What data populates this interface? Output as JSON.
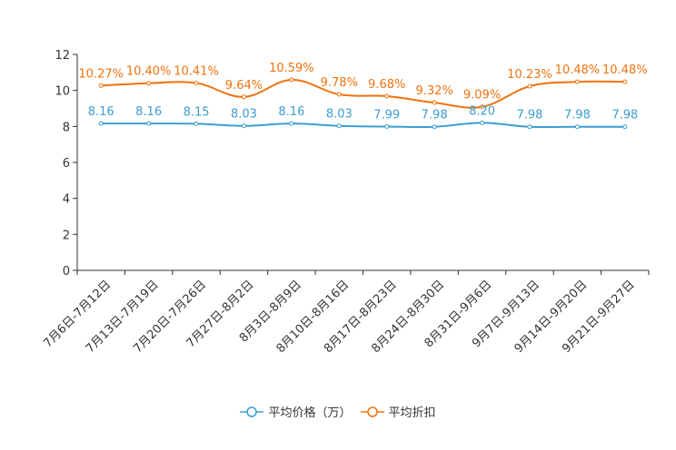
{
  "chart_data": {
    "type": "line",
    "categories": [
      "7月6日-7月12日",
      "7月13日-7月19日",
      "7月20日-7月26日",
      "7月27日-8月2日",
      "8月3日-8月9日",
      "8月10日-8月16日",
      "8月17日-8月23日",
      "8月24日-8月30日",
      "8月31日-9月6日",
      "9月7日-9月13日",
      "9月14日-9月20日",
      "9月21日-9月27日"
    ],
    "ylim": [
      0,
      12
    ],
    "yticks": [
      0,
      2,
      4,
      6,
      8,
      10,
      12
    ],
    "series": [
      {
        "name": "平均价格（万）",
        "color": "#3c9dd0",
        "values": [
          8.16,
          8.16,
          8.15,
          8.03,
          8.16,
          8.03,
          7.99,
          7.98,
          8.2,
          7.98,
          7.98,
          7.98
        ],
        "labels": [
          "8.16",
          "8.16",
          "8.15",
          "8.03",
          "8.16",
          "8.03",
          "7.99",
          "7.98",
          "8.20",
          "7.98",
          "7.98",
          "7.98"
        ]
      },
      {
        "name": "平均折扣",
        "color": "#f0720e",
        "values": [
          10.27,
          10.4,
          10.41,
          9.64,
          10.59,
          9.78,
          9.68,
          9.32,
          9.09,
          10.23,
          10.48,
          10.48
        ],
        "labels": [
          "10.27%",
          "10.40%",
          "10.41%",
          "9.64%",
          "10.59%",
          "9.78%",
          "9.68%",
          "9.32%",
          "9.09%",
          "10.23%",
          "10.48%",
          "10.48%"
        ]
      }
    ]
  }
}
